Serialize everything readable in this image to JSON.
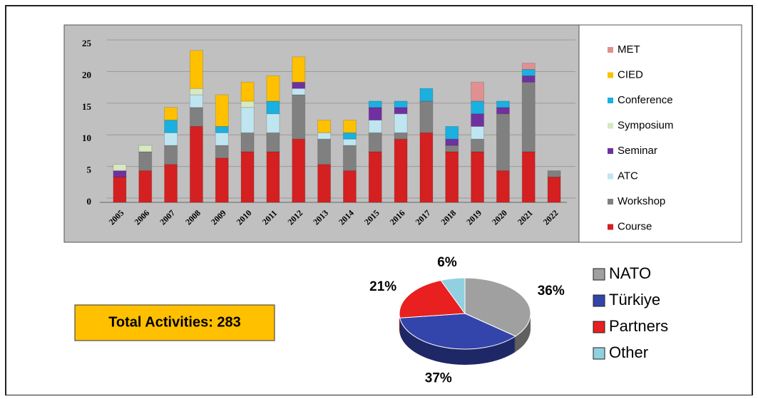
{
  "chart_data": [
    {
      "type": "bar",
      "stacked": true,
      "categories": [
        "2005",
        "2006",
        "2007",
        "2008",
        "2009",
        "2010",
        "2011",
        "2012",
        "2013",
        "2014",
        "2015",
        "2016",
        "2017",
        "2018",
        "2019",
        "2020",
        "2021",
        "2022"
      ],
      "series": [
        {
          "name": "Course",
          "color": "#d42020",
          "values": [
            4,
            5,
            6,
            12,
            7,
            8,
            8,
            10,
            6,
            5,
            8,
            10,
            11,
            8,
            8,
            5,
            8,
            4
          ]
        },
        {
          "name": "Workshop",
          "color": "#808080",
          "values": [
            0,
            3,
            3,
            3,
            2,
            3,
            3,
            7,
            4,
            4,
            3,
            1,
            5,
            1,
            2,
            9,
            11,
            1
          ]
        },
        {
          "name": "ATC",
          "color": "#bfe6f0",
          "values": [
            0,
            0,
            2,
            2,
            2,
            4,
            3,
            1,
            1,
            1,
            2,
            3,
            0,
            0,
            2,
            0,
            0,
            0
          ]
        },
        {
          "name": "Seminar",
          "color": "#7030a0",
          "values": [
            1,
            0,
            0,
            0,
            0,
            0,
            0,
            1,
            0,
            0,
            2,
            1,
            0,
            1,
            2,
            1,
            1,
            0
          ]
        },
        {
          "name": "Symposium",
          "color": "#d8e8c0",
          "values": [
            1,
            1,
            0,
            1,
            0,
            1,
            0,
            0,
            0,
            0,
            0,
            0,
            0,
            0,
            0,
            0,
            0,
            0
          ]
        },
        {
          "name": "Conference",
          "color": "#1ab0e0",
          "values": [
            0,
            0,
            2,
            0,
            1,
            0,
            2,
            0,
            0,
            1,
            1,
            1,
            2,
            2,
            2,
            1,
            1,
            0
          ]
        },
        {
          "name": "CIED",
          "color": "#ffc000",
          "values": [
            0,
            0,
            2,
            6,
            5,
            3,
            4,
            4,
            2,
            2,
            0,
            0,
            0,
            0,
            0,
            0,
            0,
            0
          ]
        },
        {
          "name": "MET",
          "color": "#e09090",
          "values": [
            0,
            0,
            0,
            0,
            0,
            0,
            0,
            0,
            0,
            0,
            0,
            0,
            0,
            0,
            3,
            0,
            1,
            0
          ]
        }
      ],
      "ylim": [
        0,
        25
      ],
      "yticks": [
        0,
        5,
        10,
        15,
        20,
        25
      ],
      "grid": true
    },
    {
      "type": "pie",
      "categories": [
        "NATO",
        "Türkiye",
        "Partners",
        "Other"
      ],
      "values": [
        36,
        37,
        21,
        6
      ],
      "value_labels": [
        "36%",
        "37%",
        "21%",
        "6%"
      ],
      "colors": [
        "#a0a0a0",
        "#3344aa",
        "#e82020",
        "#90d0e0"
      ],
      "annotation": "Total Activities: 283"
    }
  ]
}
